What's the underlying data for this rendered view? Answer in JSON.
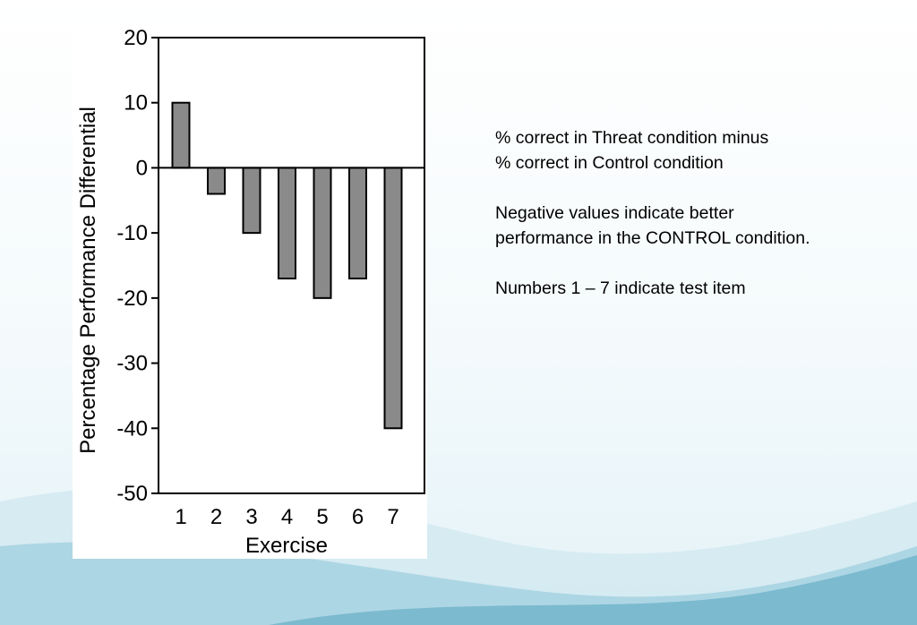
{
  "colors": {
    "bar_fill": "#8a8a8a",
    "bar_stroke": "#000000",
    "wave_light": "#bfe0ea",
    "wave_dark": "#6fb3c9"
  },
  "chart_data": {
    "type": "bar",
    "categories": [
      "1",
      "2",
      "3",
      "4",
      "5",
      "6",
      "7"
    ],
    "values": [
      10,
      -4,
      -10,
      -17,
      -20,
      -17,
      -40
    ],
    "title": "",
    "xlabel": "Exercise",
    "ylabel": "Percentage Performance Differential",
    "ylim": [
      -50,
      20
    ],
    "yticks": [
      20,
      10,
      0,
      -10,
      -20,
      -30,
      -40,
      -50
    ],
    "grid": false,
    "legend": "none"
  },
  "notes": {
    "line1": "% correct in Threat condition minus",
    "line2": "% correct in Control condition",
    "line3": "Negative values indicate better",
    "line4": "performance in the CONTROL condition.",
    "line5": "Numbers 1 – 7 indicate test item"
  }
}
